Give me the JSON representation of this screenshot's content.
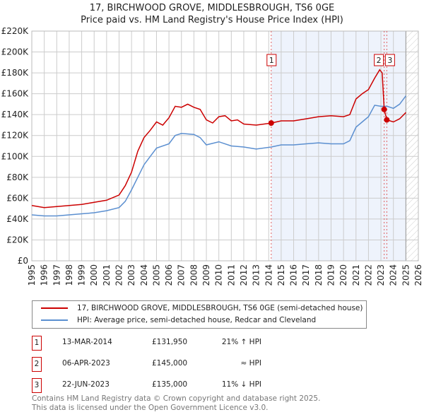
{
  "title_line1": "17, BIRCHWOOD GROVE, MIDDLESBROUGH, TS6 0GE",
  "title_line2": "Price paid vs. HM Land Registry's House Price Index (HPI)",
  "chart_data": {
    "type": "line",
    "xlim": [
      1995,
      2026
    ],
    "ylim": [
      0,
      220000
    ],
    "x_ticks": [
      "1995",
      "1996",
      "1997",
      "1998",
      "1999",
      "2000",
      "2001",
      "2002",
      "2003",
      "2004",
      "2005",
      "2006",
      "2007",
      "2008",
      "2009",
      "2010",
      "2011",
      "2012",
      "2013",
      "2014",
      "2015",
      "2016",
      "2017",
      "2018",
      "2019",
      "2020",
      "2021",
      "2022",
      "2023",
      "2024",
      "2025",
      "2026"
    ],
    "y_ticks": [
      {
        "v": 0,
        "label": "£0"
      },
      {
        "v": 20000,
        "label": "£20K"
      },
      {
        "v": 40000,
        "label": "£40K"
      },
      {
        "v": 60000,
        "label": "£60K"
      },
      {
        "v": 80000,
        "label": "£80K"
      },
      {
        "v": 100000,
        "label": "£100K"
      },
      {
        "v": 120000,
        "label": "£120K"
      },
      {
        "v": 140000,
        "label": "£140K"
      },
      {
        "v": 160000,
        "label": "£160K"
      },
      {
        "v": 180000,
        "label": "£180K"
      },
      {
        "v": 200000,
        "label": "£200K"
      },
      {
        "v": 220000,
        "label": "£220K"
      }
    ],
    "grid": true,
    "shaded_range": [
      2014.2,
      2025.0
    ],
    "hatched_from": 2025.0,
    "series": [
      {
        "name": "17, BIRCHWOOD GROVE, MIDDLESBROUGH, TS6 0GE (semi-detached house)",
        "color": "#cc0000",
        "x": [
          1995,
          1996,
          1997,
          1998,
          1999,
          2000,
          2001,
          2002,
          2002.5,
          2003,
          2003.5,
          2004,
          2004.5,
          2005,
          2005.5,
          2006,
          2006.5,
          2007,
          2007.5,
          2008,
          2008.5,
          2009,
          2009.5,
          2010,
          2010.5,
          2011,
          2011.5,
          2012,
          2013,
          2014.2,
          2015,
          2016,
          2017,
          2018,
          2019,
          2020,
          2020.5,
          2021,
          2021.5,
          2022,
          2022.5,
          2022.9,
          2023.1,
          2023.26,
          2023.47,
          2024,
          2024.5,
          2025
        ],
        "y": [
          53000,
          51000,
          52000,
          53000,
          54000,
          56000,
          58000,
          63000,
          72000,
          85000,
          105000,
          118000,
          125000,
          133000,
          130000,
          137000,
          148000,
          147000,
          150000,
          147000,
          145000,
          135000,
          132000,
          138000,
          139000,
          134000,
          135000,
          131000,
          130000,
          131950,
          134000,
          134000,
          136000,
          138000,
          139000,
          138000,
          140000,
          155000,
          160000,
          164000,
          175000,
          183000,
          180000,
          145000,
          135000,
          133000,
          136000,
          142000
        ]
      },
      {
        "name": "HPI: Average price, semi-detached house, Redcar and Cleveland",
        "color": "#5b8fd0",
        "x": [
          1995,
          1996,
          1997,
          1998,
          1999,
          2000,
          2001,
          2002,
          2002.5,
          2003,
          2003.5,
          2004,
          2004.5,
          2005,
          2006,
          2006.5,
          2007,
          2008,
          2008.5,
          2009,
          2010,
          2011,
          2012,
          2013,
          2014.2,
          2015,
          2016,
          2017,
          2018,
          2019,
          2020,
          2020.5,
          2021,
          2021.5,
          2022,
          2022.5,
          2023,
          2023.5,
          2024,
          2024.5,
          2025
        ],
        "y": [
          44000,
          43000,
          43000,
          44000,
          45000,
          46000,
          48000,
          51000,
          57000,
          68000,
          80000,
          92000,
          100000,
          108000,
          112000,
          120000,
          122000,
          121000,
          118000,
          111000,
          114000,
          110000,
          109000,
          107000,
          109000,
          111000,
          111000,
          112000,
          113000,
          112000,
          112000,
          115000,
          128000,
          133000,
          138000,
          149000,
          148000,
          148000,
          146000,
          150000,
          158000
        ]
      }
    ],
    "transactions": [
      {
        "id": "1",
        "x": 2014.2,
        "y": 131950,
        "date": "13-MAR-2014",
        "price": "£131,950",
        "hpi": "21% ↑ HPI"
      },
      {
        "id": "2",
        "x": 2023.26,
        "y": 145000,
        "date": "06-APR-2023",
        "price": "£145,000",
        "hpi": "≈ HPI"
      },
      {
        "id": "3",
        "x": 2023.47,
        "y": 135000,
        "date": "22-JUN-2023",
        "price": "£135,000",
        "hpi": "11% ↓ HPI"
      }
    ]
  },
  "footer_line1": "Contains HM Land Registry data © Crown copyright and database right 2025.",
  "footer_line2": "This data is licensed under the Open Government Licence v3.0."
}
